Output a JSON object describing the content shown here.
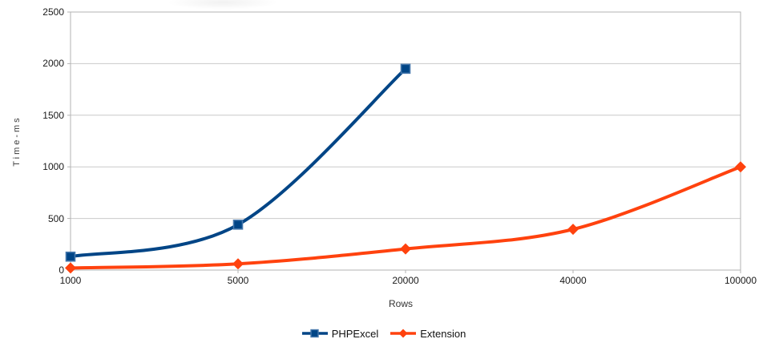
{
  "chart_data": {
    "type": "line",
    "title": "",
    "xlabel": "Rows",
    "ylabel": "Time-ms",
    "categories": [
      "1000",
      "5000",
      "20000",
      "40000",
      "100000"
    ],
    "series": [
      {
        "name": "PHPExcel",
        "color": "#004586",
        "marker": "square",
        "marker_edge": "#4577AC",
        "values": [
          130,
          440,
          1950,
          null,
          null
        ]
      },
      {
        "name": "Extension",
        "color": "#FF420E",
        "marker": "diamond",
        "marker_edge": "#FF420E",
        "values": [
          20,
          60,
          205,
          395,
          1000
        ]
      }
    ],
    "ylim": [
      0,
      2500
    ],
    "yticks": [
      0,
      500,
      1000,
      1500,
      2000,
      2500
    ],
    "grid": "horizontal gridlines at every y tick, boxed plot area",
    "legend_position": "bottom-center",
    "smooth_lines": true,
    "colors": {
      "grid": "#C9C9C9",
      "axis": "#B3B3B3",
      "tick_label": "#1A1A1A",
      "axis_title": "#333333",
      "background": "#FFFFFF"
    }
  }
}
